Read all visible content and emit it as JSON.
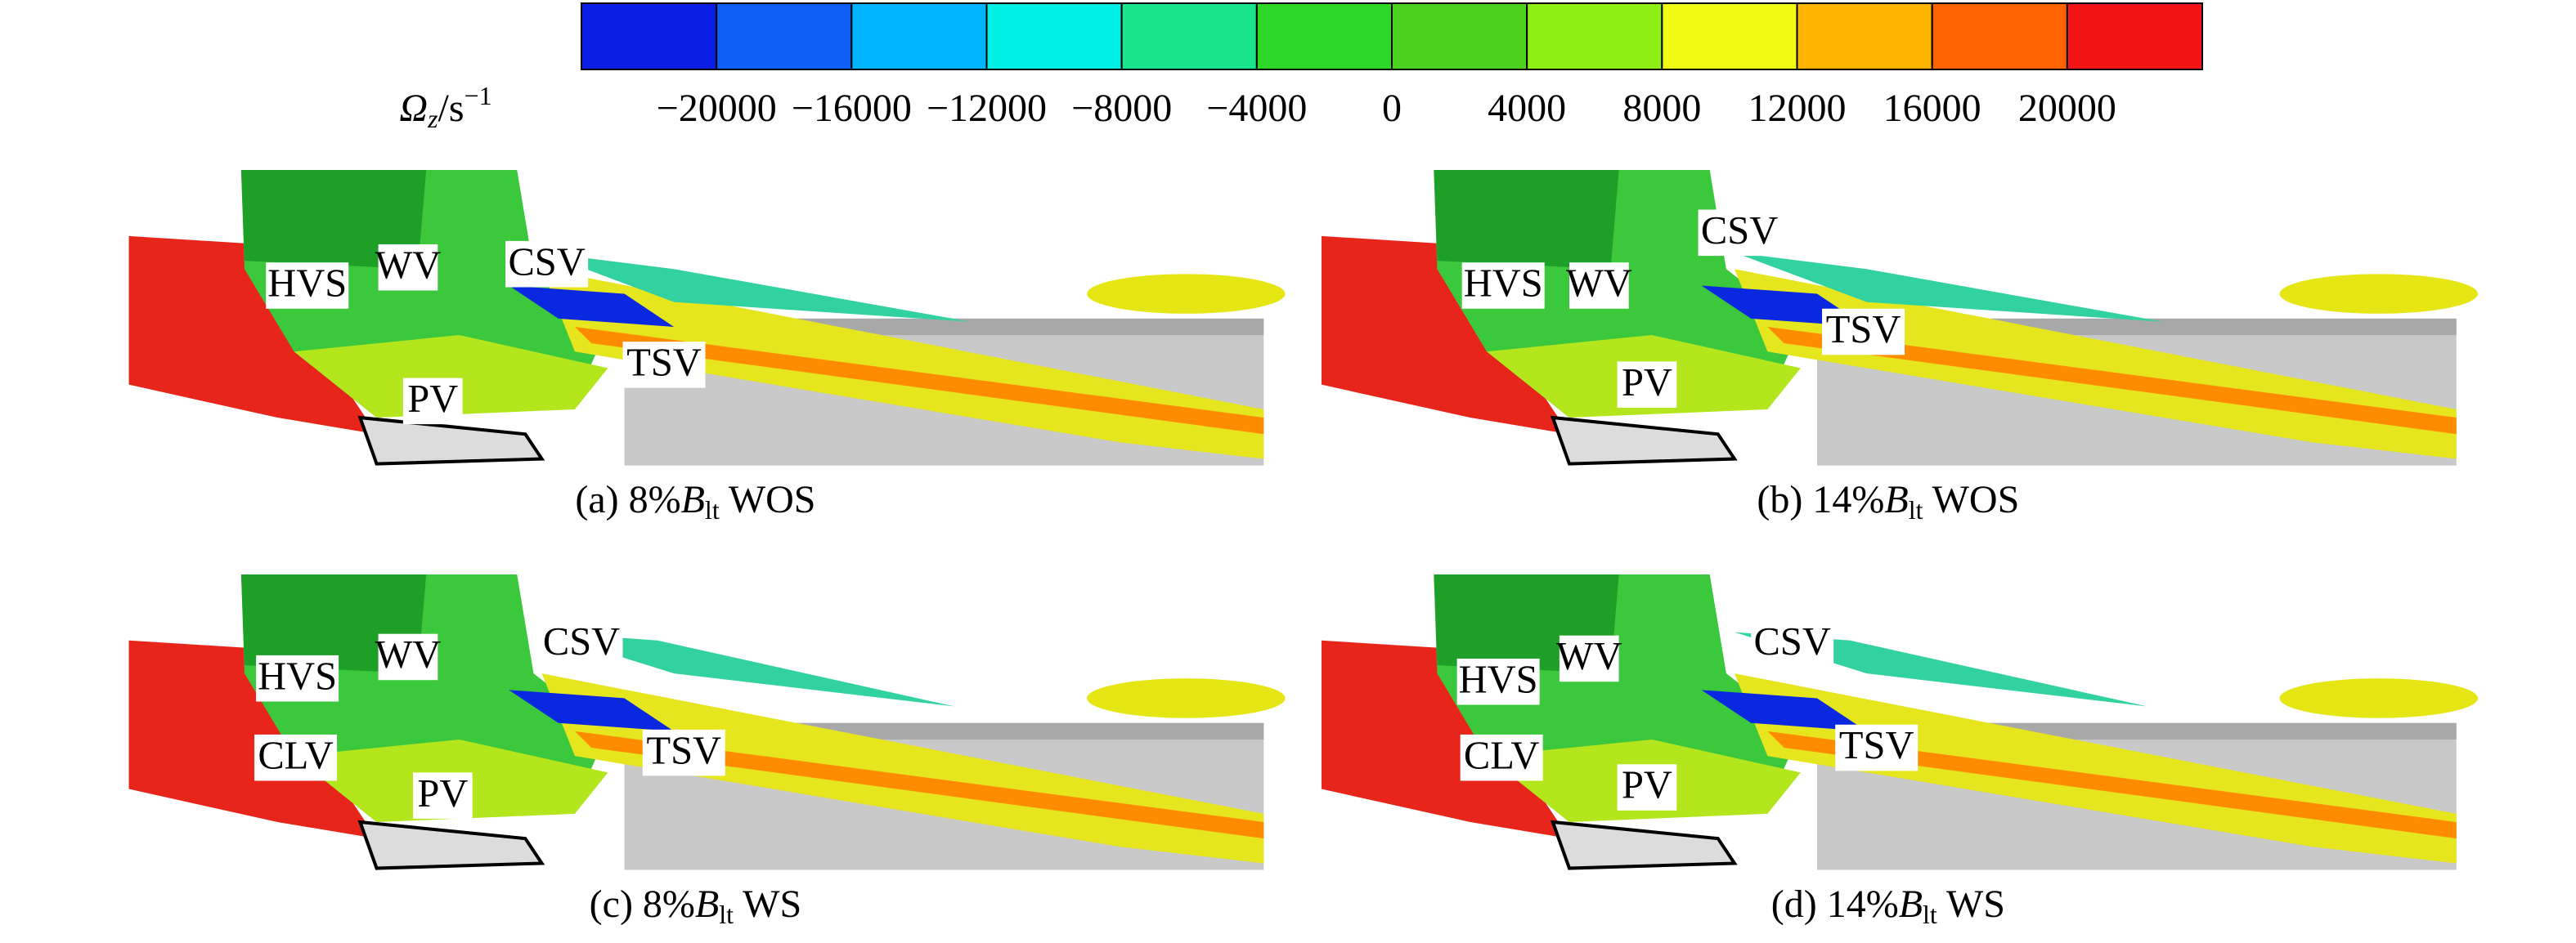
{
  "colorbar": {
    "label": {
      "symbol": "Ω",
      "subscript": "z",
      "unit": "/s",
      "superscript": "−1"
    },
    "ticks": [
      "−20000",
      "−16000",
      "−12000",
      "−8000",
      "−4000",
      "0",
      "4000",
      "8000",
      "12000",
      "16000",
      "20000"
    ],
    "colors": [
      "#0a1ee6",
      "#0f5ef5",
      "#00b4ff",
      "#00f0e6",
      "#19e68c",
      "#2dd728",
      "#4bd21e",
      "#8cf014",
      "#f0fa14",
      "#ffb400",
      "#ff6400",
      "#f01414"
    ]
  },
  "panels": [
    {
      "caption": {
        "prefix": "(a) 8%",
        "variable": "B",
        "subscript": "lt",
        "suffix": " WOS"
      },
      "labels": [
        "HVS",
        "WV",
        "CSV",
        "TSV",
        "PV"
      ]
    },
    {
      "caption": {
        "prefix": "(b) 14%",
        "variable": "B",
        "subscript": "lt",
        "suffix": " WOS"
      },
      "labels": [
        "HVS",
        "WV",
        "CSV",
        "TSV",
        "PV"
      ]
    },
    {
      "caption": {
        "prefix": "(c) 8%",
        "variable": "B",
        "subscript": "lt",
        "suffix": " WS"
      },
      "labels": [
        "HVS",
        "WV",
        "CSV",
        "TSV",
        "CLV",
        "PV"
      ]
    },
    {
      "caption": {
        "prefix": "(d) 14%",
        "variable": "B",
        "subscript": "lt",
        "suffix": " WS"
      },
      "labels": [
        "HVS",
        "WV",
        "CSV",
        "TSV",
        "CLV",
        "PV"
      ]
    }
  ]
}
